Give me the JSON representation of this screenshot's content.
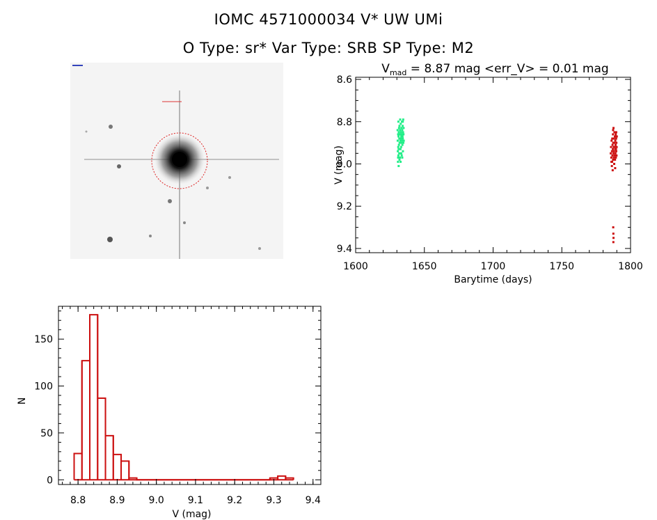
{
  "header": {
    "title": "IOMC 4571000034    V* UW UMi",
    "subtitle": "O Type: sr*   Var Type: SRB   SP Type: M2"
  },
  "colors": {
    "series_a": "#22ee88",
    "series_b": "#cc1111",
    "hist": "#cc1111",
    "circle": "#dd2222"
  },
  "chart_data": [
    {
      "type": "image",
      "name": "finder-chart",
      "description": "star field thumbnail with red circle around target"
    },
    {
      "type": "scatter",
      "title_prefix": "V",
      "title_sub": "mad",
      "title_rest": " = 8.87 mag <err_V> = 0.01 mag",
      "xlabel": "Barytime (days)",
      "ylabel": "V (mag)",
      "xlim": [
        1600,
        1800
      ],
      "ylim": [
        9.42,
        8.59
      ],
      "y_inverted": true,
      "xticks": [
        1600,
        1650,
        1700,
        1750,
        1800
      ],
      "yticks": [
        "8.6",
        "8.8",
        "9.0",
        "9.2",
        "9.4"
      ],
      "series": [
        {
          "color": "#22ee88",
          "points": [
            [
              1630.5,
              8.84
            ],
            [
              1630.6,
              8.89
            ],
            [
              1630.7,
              8.94
            ],
            [
              1630.8,
              8.99
            ],
            [
              1630.9,
              8.86
            ],
            [
              1631.0,
              8.92
            ],
            [
              1631.1,
              8.8
            ],
            [
              1631.2,
              8.87
            ],
            [
              1631.3,
              9.01
            ],
            [
              1631.4,
              8.85
            ],
            [
              1631.5,
              8.91
            ],
            [
              1631.6,
              8.83
            ],
            [
              1631.7,
              8.95
            ],
            [
              1631.8,
              8.88
            ],
            [
              1631.9,
              8.82
            ],
            [
              1632.0,
              8.9
            ],
            [
              1632.1,
              8.86
            ],
            [
              1632.2,
              8.97
            ],
            [
              1632.3,
              8.84
            ],
            [
              1632.4,
              8.79
            ],
            [
              1632.5,
              8.89
            ],
            [
              1632.6,
              8.93
            ],
            [
              1632.7,
              8.86
            ],
            [
              1632.8,
              8.81
            ],
            [
              1632.9,
              8.88
            ],
            [
              1633.0,
              8.85
            ],
            [
              1633.1,
              8.92
            ],
            [
              1633.2,
              8.87
            ],
            [
              1633.3,
              8.83
            ],
            [
              1633.4,
              8.9
            ],
            [
              1633.5,
              8.96
            ],
            [
              1633.6,
              8.86
            ],
            [
              1633.7,
              8.8
            ],
            [
              1633.8,
              8.89
            ],
            [
              1633.9,
              8.84
            ],
            [
              1634.0,
              8.91
            ],
            [
              1634.1,
              8.87
            ],
            [
              1634.2,
              8.82
            ],
            [
              1634.3,
              8.88
            ],
            [
              1634.4,
              8.94
            ],
            [
              1634.5,
              8.85
            ],
            [
              1634.6,
              8.79
            ],
            [
              1634.7,
              8.9
            ],
            [
              1634.8,
              8.86
            ],
            [
              1634.9,
              8.83
            ],
            [
              1635.0,
              8.89
            ],
            [
              1630.9,
              8.97
            ],
            [
              1631.3,
              8.93
            ],
            [
              1632.7,
              8.99
            ],
            [
              1633.9,
              8.97
            ],
            [
              1631.9,
              8.98
            ],
            [
              1633.2,
              8.95
            ],
            [
              1634.3,
              8.8
            ],
            [
              1632.4,
              8.95
            ],
            [
              1631.1,
              8.96
            ]
          ]
        },
        {
          "color": "#cc1111",
          "points": [
            [
              1785.6,
              8.95
            ],
            [
              1785.8,
              8.92
            ],
            [
              1786.0,
              8.97
            ],
            [
              1786.2,
              8.89
            ],
            [
              1786.4,
              9.01
            ],
            [
              1786.5,
              8.94
            ],
            [
              1786.6,
              8.99
            ],
            [
              1786.7,
              8.88
            ],
            [
              1786.8,
              8.96
            ],
            [
              1786.9,
              8.91
            ],
            [
              1787.0,
              9.03
            ],
            [
              1787.1,
              8.93
            ],
            [
              1787.2,
              8.86
            ],
            [
              1787.3,
              8.98
            ],
            [
              1787.4,
              8.9
            ],
            [
              1787.5,
              8.95
            ],
            [
              1787.6,
              8.83
            ],
            [
              1787.7,
              8.92
            ],
            [
              1787.8,
              8.97
            ],
            [
              1787.9,
              8.88
            ],
            [
              1788.0,
              8.94
            ],
            [
              1788.1,
              9.0
            ],
            [
              1788.2,
              8.9
            ],
            [
              1788.3,
              8.85
            ],
            [
              1788.4,
              8.96
            ],
            [
              1788.5,
              8.92
            ],
            [
              1788.6,
              8.87
            ],
            [
              1788.7,
              8.98
            ],
            [
              1788.8,
              8.93
            ],
            [
              1788.9,
              8.89
            ],
            [
              1789.0,
              8.95
            ],
            [
              1789.1,
              8.91
            ],
            [
              1789.2,
              8.86
            ],
            [
              1789.3,
              8.97
            ],
            [
              1789.4,
              8.93
            ],
            [
              1789.5,
              8.88
            ],
            [
              1789.6,
              8.94
            ],
            [
              1789.7,
              8.9
            ],
            [
              1789.8,
              8.96
            ],
            [
              1789.9,
              8.92
            ],
            [
              1790.0,
              8.87
            ],
            [
              1786.1,
              8.99
            ],
            [
              1787.3,
              8.84
            ],
            [
              1788.8,
              9.02
            ],
            [
              1789.6,
              8.85
            ],
            [
              1787.4,
              9.3
            ],
            [
              1787.5,
              9.33
            ],
            [
              1787.6,
              9.35
            ],
            [
              1787.5,
              9.37
            ]
          ]
        }
      ]
    },
    {
      "type": "bar",
      "histogram": true,
      "xlabel": "V (mag)",
      "ylabel": "N",
      "xlim": [
        8.75,
        9.42
      ],
      "ylim": [
        -5,
        185
      ],
      "xticks": [
        "8.8",
        "8.9",
        "9.0",
        "9.1",
        "9.2",
        "9.3",
        "9.4"
      ],
      "yticks": [
        0,
        50,
        100,
        150
      ],
      "bin_width": 0.02,
      "bins": [
        {
          "x0": 8.79,
          "count": 28
        },
        {
          "x0": 8.81,
          "count": 127
        },
        {
          "x0": 8.83,
          "count": 176
        },
        {
          "x0": 8.85,
          "count": 87
        },
        {
          "x0": 8.87,
          "count": 47
        },
        {
          "x0": 8.89,
          "count": 27
        },
        {
          "x0": 8.91,
          "count": 20
        },
        {
          "x0": 8.93,
          "count": 2
        },
        {
          "x0": 8.95,
          "count": 0
        },
        {
          "x0": 8.97,
          "count": 0
        },
        {
          "x0": 8.99,
          "count": 0
        },
        {
          "x0": 9.01,
          "count": 0
        },
        {
          "x0": 9.03,
          "count": 0
        },
        {
          "x0": 9.05,
          "count": 0
        },
        {
          "x0": 9.07,
          "count": 0
        },
        {
          "x0": 9.09,
          "count": 0
        },
        {
          "x0": 9.11,
          "count": 0
        },
        {
          "x0": 9.13,
          "count": 0
        },
        {
          "x0": 9.15,
          "count": 0
        },
        {
          "x0": 9.17,
          "count": 0
        },
        {
          "x0": 9.19,
          "count": 0
        },
        {
          "x0": 9.21,
          "count": 0
        },
        {
          "x0": 9.23,
          "count": 0
        },
        {
          "x0": 9.25,
          "count": 0
        },
        {
          "x0": 9.27,
          "count": 0
        },
        {
          "x0": 9.29,
          "count": 2
        },
        {
          "x0": 9.31,
          "count": 4
        },
        {
          "x0": 9.33,
          "count": 2
        }
      ]
    }
  ]
}
